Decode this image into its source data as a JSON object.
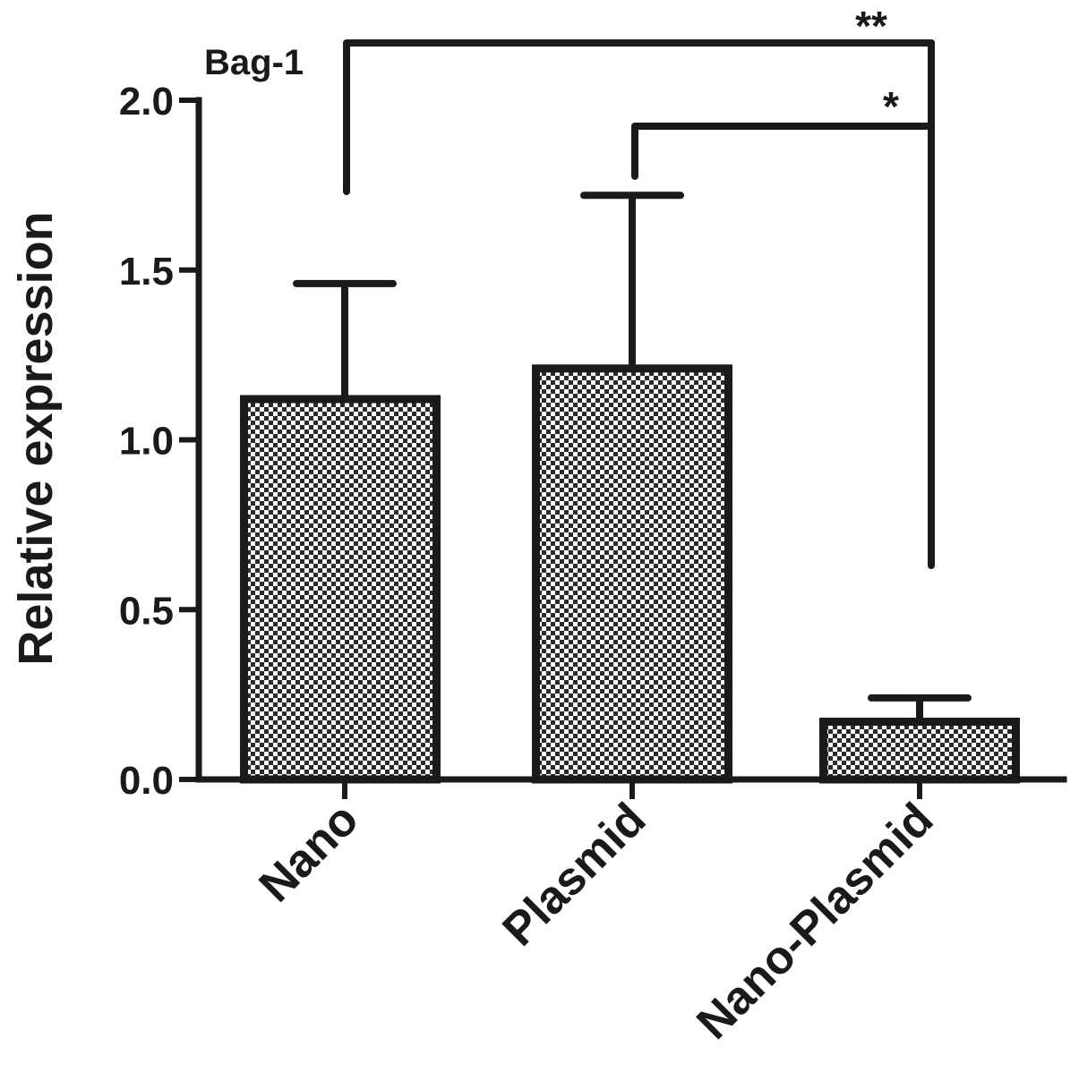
{
  "chart_data": {
    "type": "bar",
    "panel_label": "Bag-1",
    "ylabel": "Relative expression",
    "categories": [
      "Nano",
      "Plasmid",
      "Nano-Plasmid"
    ],
    "values": [
      1.12,
      1.21,
      0.17
    ],
    "errors_upper": [
      1.46,
      1.72,
      0.24
    ],
    "ylim": [
      0,
      2.0
    ],
    "yticks": [
      {
        "value": 0.0,
        "label": "0.0"
      },
      {
        "value": 0.5,
        "label": "0.5"
      },
      {
        "value": 1.0,
        "label": "1.0"
      },
      {
        "value": 1.5,
        "label": "1.5"
      },
      {
        "value": 2.0,
        "label": "2.0"
      }
    ],
    "significance": [
      {
        "from": 0,
        "to": 2,
        "label": "**"
      },
      {
        "from": 1,
        "to": 2,
        "label": "*"
      }
    ],
    "grid": false,
    "colors": {
      "stroke": "#1a1a1a",
      "fill_pattern": "checker"
    }
  }
}
